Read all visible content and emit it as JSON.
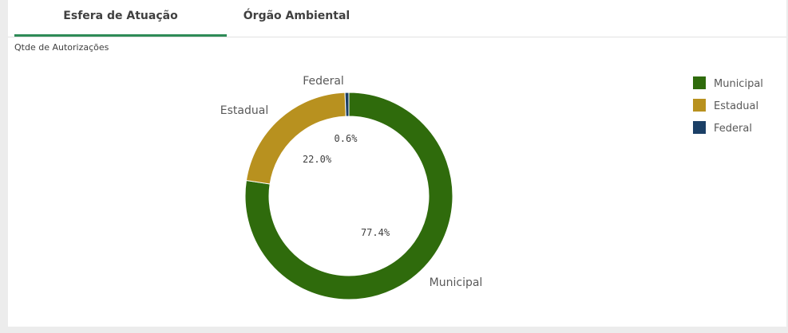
{
  "tabs": [
    {
      "label": "Esfera de Atuação",
      "active": true
    },
    {
      "label": "Órgão Ambiental",
      "active": false
    }
  ],
  "accent_color": "#2e8b57",
  "chart_data": {
    "type": "pie",
    "donut": true,
    "title": "Qtde de Autorizações",
    "categories": [
      "Municipal",
      "Estadual",
      "Federal"
    ],
    "values": [
      77.4,
      22.0,
      0.6
    ],
    "percent_labels": [
      "77.4%",
      "22.0%",
      "0.6%"
    ],
    "colors": [
      "#2f6b0c",
      "#b8911f",
      "#1b3f66"
    ],
    "legend": {
      "position": "top-right",
      "entries": [
        "Municipal",
        "Estadual",
        "Federal"
      ]
    }
  }
}
